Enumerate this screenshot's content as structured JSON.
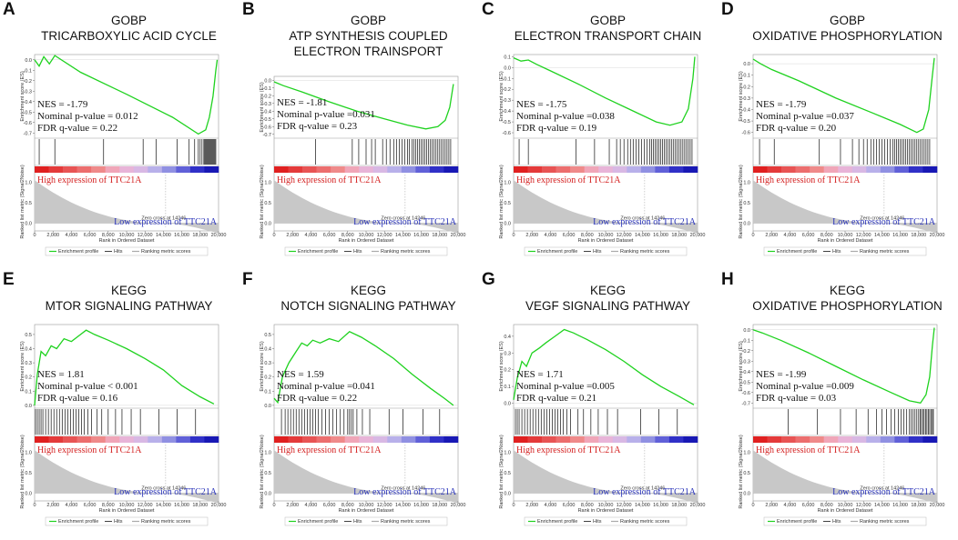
{
  "figure_texts": {
    "y_axis_es_label": "Enrichment score (ES)",
    "y_axis_rank_label": "Ranked list metric (Signal2Noise)",
    "x_axis_label": "Rank in Ordered Dataset",
    "zero_cross": "Zero cross at 14246",
    "high_label": "High expression of TTC21A",
    "low_label": "Low expression of TTC21A",
    "legend": [
      "Enrichment profile",
      "Hits",
      "Ranking metric scores"
    ],
    "x_ticks": [
      "0",
      "2,000",
      "4,000",
      "6,000",
      "8,000",
      "10,000",
      "12,000",
      "14,000",
      "16,000",
      "18,000",
      "20,000"
    ],
    "rank_ticks": [
      "1.0",
      "0.5",
      "0.0"
    ]
  },
  "colors": {
    "curve": "#1fd21f",
    "high_text": "#d42020",
    "low_text": "#2630b8",
    "hit": "#111111",
    "metric": "#c8c8c8"
  },
  "chart_data": [
    {
      "letter": "A",
      "type": "line",
      "title_lines": [
        "GOBP",
        "TRICARBOXYLIC ACID CYCLE"
      ],
      "nes": "NES = -1.79",
      "pval": "Nominal p-value = 0.012",
      "fdr": "FDR q-value = 0.22",
      "ylim": [
        -0.75,
        0.05
      ],
      "yticks": [
        0.0,
        -0.1,
        -0.2,
        -0.3,
        -0.4,
        -0.5,
        -0.6,
        -0.7
      ],
      "ytick_labels": [
        "0.0",
        "-0.1",
        "-0.2",
        "-0.3",
        "-0.4",
        "-0.5",
        "-0.6",
        "-0.7"
      ],
      "curve": [
        [
          0,
          0
        ],
        [
          500,
          -0.06
        ],
        [
          1000,
          0.03
        ],
        [
          1600,
          -0.04
        ],
        [
          2200,
          0.04
        ],
        [
          5000,
          -0.12
        ],
        [
          10000,
          -0.33
        ],
        [
          15000,
          -0.55
        ],
        [
          17800,
          -0.71
        ],
        [
          18600,
          -0.67
        ],
        [
          19000,
          -0.55
        ],
        [
          19400,
          -0.35
        ],
        [
          19700,
          -0.1
        ],
        [
          19850,
          0
        ]
      ],
      "hits": [
        500,
        2200,
        7500,
        11800,
        13200,
        15500,
        16800,
        17400,
        17800,
        18000,
        18200,
        18400,
        18500,
        18600,
        18700,
        18800,
        18900,
        19000,
        19100,
        19200,
        19300,
        19400,
        19500,
        19600,
        19700
      ]
    },
    {
      "letter": "B",
      "type": "line",
      "title_lines": [
        "GOBP",
        "ATP SYNTHESIS COUPLED",
        "ELECTRON TRAINSPORT"
      ],
      "nes": "NES = -1.81",
      "pval": "Nominal p-value =0.031",
      "fdr": "FDR q-value = 0.23",
      "ylim": [
        -0.75,
        0.05
      ],
      "yticks": [
        0.0,
        -0.1,
        -0.2,
        -0.3,
        -0.4,
        -0.5,
        -0.6,
        -0.7
      ],
      "ytick_labels": [
        "0.0",
        "-0.1",
        "-0.2",
        "-0.3",
        "-0.4",
        "-0.5",
        "-0.6",
        "-0.7"
      ],
      "curve": [
        [
          0,
          -0.02
        ],
        [
          1000,
          -0.07
        ],
        [
          3000,
          -0.15
        ],
        [
          6000,
          -0.28
        ],
        [
          9000,
          -0.4
        ],
        [
          12000,
          -0.5
        ],
        [
          14500,
          -0.58
        ],
        [
          16500,
          -0.63
        ],
        [
          17800,
          -0.6
        ],
        [
          18600,
          -0.52
        ],
        [
          19100,
          -0.35
        ],
        [
          19500,
          -0.05
        ]
      ],
      "hits": [
        4500,
        8500,
        9200,
        10000,
        10600,
        11000,
        11800,
        12200,
        12600,
        13000,
        13300,
        13600,
        13900,
        14200,
        14500,
        14700,
        15000,
        15200,
        15400,
        15600,
        15800,
        16000,
        16200,
        16400,
        16600,
        16800,
        17000,
        17200,
        17400,
        17600,
        17800,
        18000,
        18200,
        18400,
        18600,
        18800,
        19000,
        19200
      ]
    },
    {
      "letter": "C",
      "type": "line",
      "title_lines": [
        "GOBP",
        "ELECTRON TRANSPORT CHAIN"
      ],
      "nes": "NES = -1.75",
      "pval": "Nominal p-value =0.038",
      "fdr": "FDR q-value = 0.19",
      "ylim": [
        -0.65,
        0.12
      ],
      "yticks": [
        0.1,
        0.0,
        -0.1,
        -0.2,
        -0.3,
        -0.4,
        -0.5,
        -0.6
      ],
      "ytick_labels": [
        "0.1",
        "0.0",
        "-0.1",
        "-0.2",
        "-0.3",
        "-0.4",
        "-0.5",
        "-0.6"
      ],
      "curve": [
        [
          0,
          0.09
        ],
        [
          800,
          0.06
        ],
        [
          1600,
          0.07
        ],
        [
          2500,
          0.03
        ],
        [
          4000,
          -0.03
        ],
        [
          7000,
          -0.15
        ],
        [
          10000,
          -0.28
        ],
        [
          13000,
          -0.4
        ],
        [
          15500,
          -0.5
        ],
        [
          17000,
          -0.53
        ],
        [
          18300,
          -0.5
        ],
        [
          19000,
          -0.38
        ],
        [
          19500,
          -0.1
        ],
        [
          19700,
          0.1
        ]
      ],
      "hits": [
        600,
        1600,
        6800,
        8800,
        10400,
        11200,
        11600,
        12000,
        12400,
        12700,
        13000,
        13300,
        13600,
        13900,
        14200,
        14500,
        14800,
        15000,
        15200,
        15400,
        15600,
        15800,
        16000,
        16200,
        16400,
        16600,
        16800,
        17000,
        17200,
        17400,
        17600,
        17800,
        18000,
        18200,
        18400,
        18600,
        18800,
        19000,
        19200,
        19400
      ]
    },
    {
      "letter": "D",
      "type": "line",
      "title_lines": [
        "GOBP",
        "OXIDATIVE PHOSPHORYLATION"
      ],
      "nes": "NES = -1.79",
      "pval": "Nominal p-value =0.037",
      "fdr": "FDR q-value = 0.20",
      "ylim": [
        -0.65,
        0.08
      ],
      "yticks": [
        0.0,
        -0.1,
        -0.2,
        -0.3,
        -0.4,
        -0.5,
        -0.6
      ],
      "ytick_labels": [
        "0.0",
        "-0.1",
        "-0.2",
        "-0.3",
        "-0.4",
        "-0.5",
        "-0.6"
      ],
      "curve": [
        [
          0,
          0.04
        ],
        [
          800,
          0.0
        ],
        [
          2000,
          -0.05
        ],
        [
          5000,
          -0.15
        ],
        [
          9000,
          -0.3
        ],
        [
          13000,
          -0.43
        ],
        [
          16000,
          -0.53
        ],
        [
          17800,
          -0.6
        ],
        [
          18500,
          -0.57
        ],
        [
          19100,
          -0.4
        ],
        [
          19500,
          -0.1
        ],
        [
          19700,
          0.05
        ]
      ],
      "hits": [
        700,
        2300,
        7200,
        9500,
        10800,
        11500,
        12000,
        12400,
        12800,
        13100,
        13400,
        13700,
        14000,
        14300,
        14600,
        14900,
        15200,
        15400,
        15600,
        15800,
        16000,
        16200,
        16400,
        16600,
        16800,
        17000,
        17200,
        17400,
        17600,
        17800,
        18000,
        18200,
        18400,
        18600,
        18800,
        19000,
        19200
      ]
    },
    {
      "letter": "E",
      "type": "line",
      "title_lines": [
        "KEGG",
        "MTOR SIGNALING PATHWAY"
      ],
      "nes": "NES = 1.81",
      "pval": "Nominal p-value < 0.001",
      "fdr": "FDR q-value = 0.16",
      "ylim": [
        -0.02,
        0.57
      ],
      "yticks": [
        0.0,
        0.1,
        0.2,
        0.3,
        0.4,
        0.5
      ],
      "ytick_labels": [
        "0.0",
        "0.1",
        "0.2",
        "0.3",
        "0.4",
        "0.5"
      ],
      "curve": [
        [
          0,
          0.0
        ],
        [
          300,
          0.22
        ],
        [
          700,
          0.38
        ],
        [
          1200,
          0.35
        ],
        [
          1800,
          0.42
        ],
        [
          2400,
          0.4
        ],
        [
          3200,
          0.47
        ],
        [
          4000,
          0.45
        ],
        [
          5000,
          0.5
        ],
        [
          5600,
          0.53
        ],
        [
          6500,
          0.5
        ],
        [
          8000,
          0.46
        ],
        [
          10000,
          0.4
        ],
        [
          12000,
          0.33
        ],
        [
          14000,
          0.25
        ],
        [
          16000,
          0.14
        ],
        [
          18000,
          0.06
        ],
        [
          19500,
          0.01
        ]
      ],
      "hits": [
        100,
        300,
        500,
        700,
        900,
        1200,
        1500,
        1800,
        2100,
        2400,
        2700,
        3000,
        3300,
        3600,
        3900,
        4200,
        4500,
        4800,
        5100,
        5400,
        5800,
        6200,
        6800,
        7300,
        8000,
        8800,
        9500,
        10500,
        11500,
        13500,
        15500,
        17500
      ]
    },
    {
      "letter": "F",
      "type": "line",
      "title_lines": [
        "KEGG",
        "NOTCH SIGNALING PATHWAY"
      ],
      "nes": "NES = 1.59",
      "pval": "Nominal p-value =0.041",
      "fdr": "FDR q-value = 0.22",
      "ylim": [
        -0.02,
        0.57
      ],
      "yticks": [
        0.0,
        0.1,
        0.2,
        0.3,
        0.4,
        0.5
      ],
      "ytick_labels": [
        "0.0",
        "0.1",
        "0.2",
        "0.3",
        "0.4",
        "0.5"
      ],
      "curve": [
        [
          0,
          0.05
        ],
        [
          400,
          0.02
        ],
        [
          900,
          0.2
        ],
        [
          1600,
          0.3
        ],
        [
          2400,
          0.38
        ],
        [
          3000,
          0.44
        ],
        [
          3600,
          0.42
        ],
        [
          4200,
          0.46
        ],
        [
          5000,
          0.44
        ],
        [
          6000,
          0.47
        ],
        [
          7000,
          0.45
        ],
        [
          8200,
          0.52
        ],
        [
          9500,
          0.48
        ],
        [
          11000,
          0.42
        ],
        [
          13000,
          0.33
        ],
        [
          15000,
          0.22
        ],
        [
          17000,
          0.12
        ],
        [
          18500,
          0.05
        ],
        [
          19500,
          0.0
        ]
      ],
      "hits": [
        800,
        1200,
        1500,
        1800,
        2100,
        2400,
        2700,
        3000,
        3300,
        3600,
        3900,
        4200,
        4500,
        4800,
        5200,
        5600,
        6000,
        6400,
        6800,
        7200,
        7600,
        8000,
        8200,
        8400,
        8600,
        9000,
        9600,
        10400,
        12500,
        14000,
        16200,
        18000
      ]
    },
    {
      "letter": "G",
      "type": "line",
      "title_lines": [
        "KEGG",
        "VEGF SIGNALING PATHWAY"
      ],
      "nes": "NES = 1.71",
      "pval": "Nominal p-value =0.005",
      "fdr": "FDR q-value = 0.21",
      "ylim": [
        -0.03,
        0.47
      ],
      "yticks": [
        0.0,
        0.1,
        0.2,
        0.3,
        0.4
      ],
      "ytick_labels": [
        "0.0",
        "0.1",
        "0.2",
        "0.3",
        "0.4"
      ],
      "curve": [
        [
          0,
          0.02
        ],
        [
          400,
          0.15
        ],
        [
          900,
          0.25
        ],
        [
          1400,
          0.22
        ],
        [
          2000,
          0.3
        ],
        [
          2800,
          0.33
        ],
        [
          3500,
          0.36
        ],
        [
          4500,
          0.4
        ],
        [
          5500,
          0.44
        ],
        [
          6500,
          0.42
        ],
        [
          8000,
          0.38
        ],
        [
          10000,
          0.32
        ],
        [
          12000,
          0.25
        ],
        [
          14000,
          0.17
        ],
        [
          16000,
          0.1
        ],
        [
          18000,
          0.04
        ],
        [
          19600,
          -0.01
        ]
      ],
      "hits": [
        200,
        400,
        600,
        900,
        1200,
        1500,
        1800,
        2100,
        2400,
        2700,
        3000,
        3300,
        3600,
        3900,
        4200,
        4500,
        4800,
        5100,
        5400,
        5800,
        6200,
        7000,
        7600,
        8400,
        9200,
        10200,
        11300,
        13800,
        15800,
        17800
      ]
    },
    {
      "letter": "H",
      "type": "line",
      "title_lines": [
        "KEGG",
        "OXIDATIVE PHOSPHORYLATION"
      ],
      "nes": "NES = -1.99",
      "pval": "Nominal p-value =0.009",
      "fdr": "FDR q-value = 0.03",
      "ylim": [
        -0.75,
        0.05
      ],
      "yticks": [
        0.0,
        -0.1,
        -0.2,
        -0.3,
        -0.4,
        -0.5,
        -0.6,
        -0.7
      ],
      "ytick_labels": [
        "0.0",
        "-0.1",
        "-0.2",
        "-0.3",
        "-0.4",
        "-0.5",
        "-0.6",
        "-0.7"
      ],
      "curve": [
        [
          0,
          0.0
        ],
        [
          1000,
          -0.03
        ],
        [
          3000,
          -0.1
        ],
        [
          6000,
          -0.22
        ],
        [
          9000,
          -0.35
        ],
        [
          12000,
          -0.48
        ],
        [
          15000,
          -0.6
        ],
        [
          17000,
          -0.68
        ],
        [
          18200,
          -0.7
        ],
        [
          18800,
          -0.62
        ],
        [
          19200,
          -0.45
        ],
        [
          19500,
          -0.15
        ],
        [
          19700,
          0.02
        ]
      ],
      "hits": [
        3800,
        7000,
        9500,
        11200,
        12500,
        13400,
        14000,
        14500,
        15000,
        15400,
        15800,
        16100,
        16400,
        16700,
        17000,
        17200,
        17400,
        17600,
        17800,
        18000,
        18150,
        18300,
        18450,
        18600,
        18750,
        18900,
        19050,
        19200,
        19350,
        19500,
        19600
      ]
    }
  ]
}
